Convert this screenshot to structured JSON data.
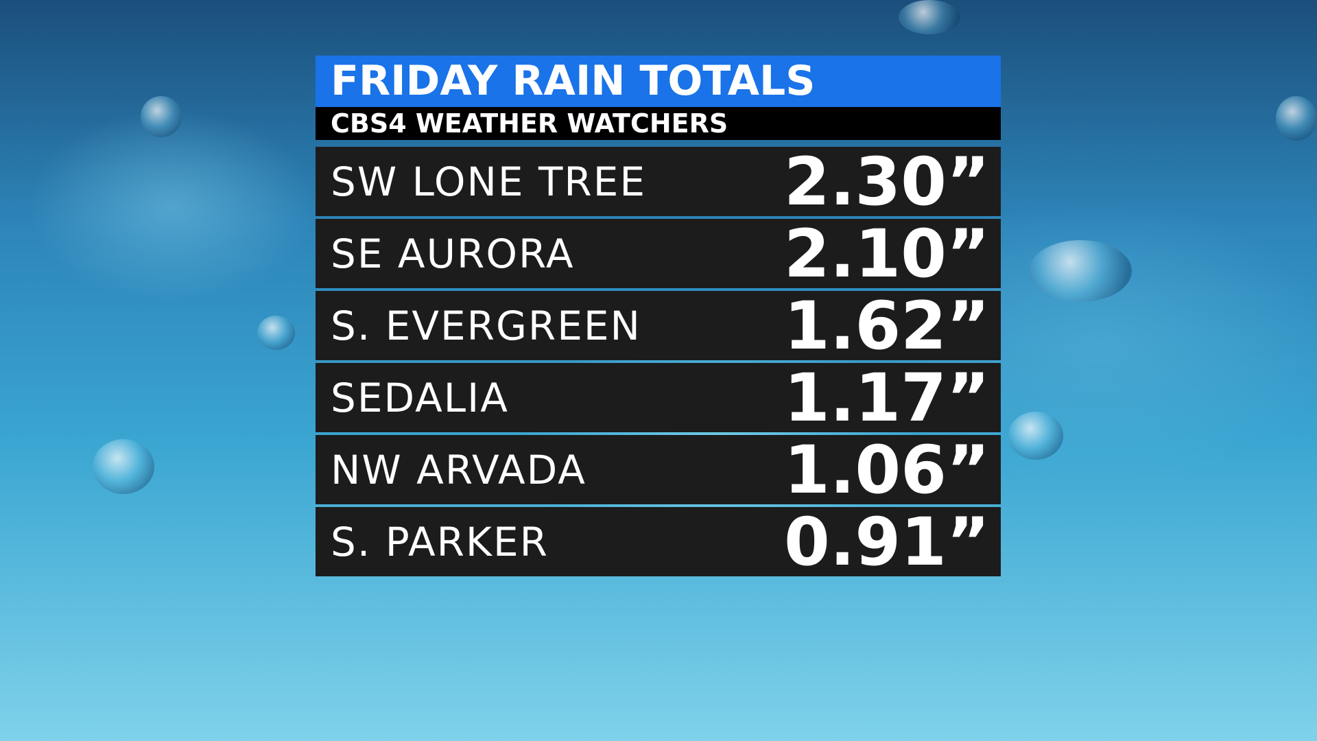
{
  "header": {
    "title": "FRIDAY RAIN TOTALS",
    "subtitle": "CBS4 WEATHER WATCHERS"
  },
  "table": {
    "rows": [
      [
        "SW LONE TREE",
        "2.30”"
      ],
      [
        "SE AURORA",
        "2.10”"
      ],
      [
        "S. EVERGREEN",
        "1.62”"
      ],
      [
        "SEDALIA",
        "1.17”"
      ],
      [
        "NW ARVADA",
        "1.06”"
      ],
      [
        "S. PARKER",
        "0.91”"
      ]
    ]
  }
}
